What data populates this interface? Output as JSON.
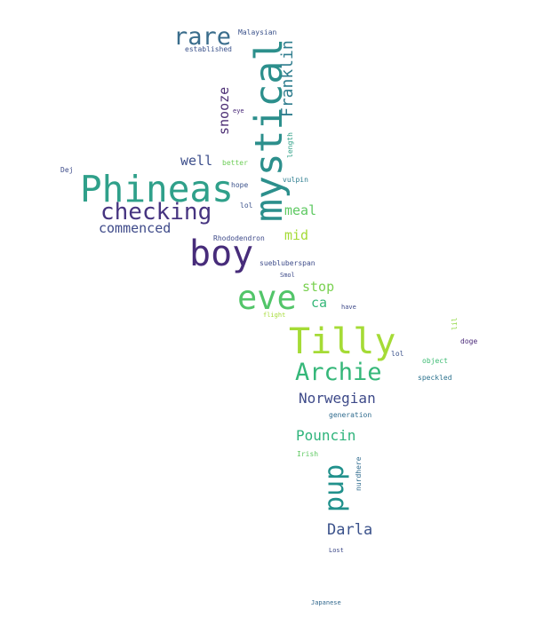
{
  "cloud": {
    "words": [
      {
        "text": "rare",
        "color": "#3a6d8c"
      },
      {
        "text": "Malaysian",
        "color": "#3b528b"
      },
      {
        "text": "established",
        "color": "#3b528b"
      },
      {
        "text": "mystical",
        "color": "#2c8f8c"
      },
      {
        "text": "Franklin",
        "color": "#2f7d8e"
      },
      {
        "text": "snooze",
        "color": "#4b2d73"
      },
      {
        "text": "eye",
        "color": "#482878"
      },
      {
        "text": "length",
        "color": "#2fa087"
      },
      {
        "text": "Phineas",
        "color": "#2fa08a"
      },
      {
        "text": "well",
        "color": "#3b4d8a"
      },
      {
        "text": "better",
        "color": "#6ece58"
      },
      {
        "text": "vulpin",
        "color": "#2a7b8e"
      },
      {
        "text": "hope",
        "color": "#3b528b"
      },
      {
        "text": "Dej",
        "color": "#3e4c8a"
      },
      {
        "text": "checking",
        "color": "#463480"
      },
      {
        "text": "lol",
        "color": "#3b528b"
      },
      {
        "text": "meal",
        "color": "#5ec962"
      },
      {
        "text": "commenced",
        "color": "#3e4a89"
      },
      {
        "text": "mid",
        "color": "#a5db36"
      },
      {
        "text": "Rhododendron",
        "color": "#3e4a89"
      },
      {
        "text": "boy",
        "color": "#472c7a"
      },
      {
        "text": "suebluberspan",
        "color": "#3e4c8a"
      },
      {
        "text": "Smol",
        "color": "#3e4c8a"
      },
      {
        "text": "stop",
        "color": "#7ad151"
      },
      {
        "text": "eve",
        "color": "#52c569"
      },
      {
        "text": "ca",
        "color": "#35b779"
      },
      {
        "text": "have",
        "color": "#3e4a89"
      },
      {
        "text": "flight",
        "color": "#a5db36"
      },
      {
        "text": "Tilly",
        "color": "#a5db36"
      },
      {
        "text": "lil",
        "color": "#90d743"
      },
      {
        "text": "doge",
        "color": "#482878"
      },
      {
        "text": "lol",
        "color": "#3b528b"
      },
      {
        "text": "object",
        "color": "#3ebc74"
      },
      {
        "text": "Archie",
        "color": "#35b779"
      },
      {
        "text": "speckled",
        "color": "#2c728e"
      },
      {
        "text": "Norwegian",
        "color": "#3e4a89"
      },
      {
        "text": "generation",
        "color": "#2f6b8e"
      },
      {
        "text": "Pouncin",
        "color": "#2fb47c"
      },
      {
        "text": "Irish",
        "color": "#5ec962"
      },
      {
        "text": "pup",
        "color": "#21918c"
      },
      {
        "text": "nurdhere",
        "color": "#2f6b8e"
      },
      {
        "text": "Darla",
        "color": "#3b528b"
      },
      {
        "text": "Lost",
        "color": "#3e4a89"
      },
      {
        "text": "Japanese",
        "color": "#31688e"
      }
    ]
  }
}
